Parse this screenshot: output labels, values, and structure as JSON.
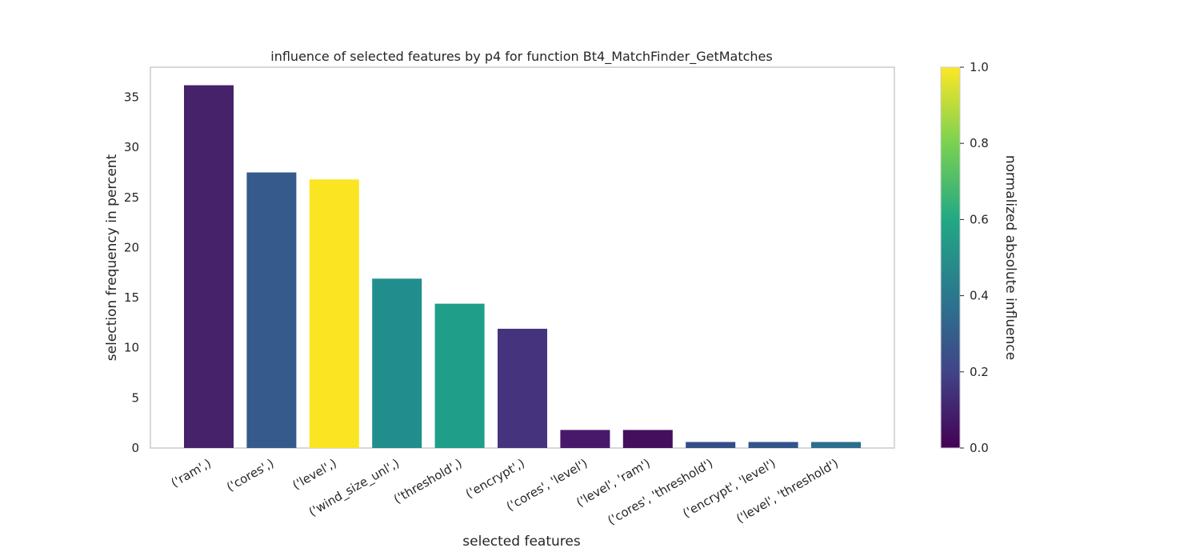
{
  "chart_data": {
    "type": "bar",
    "title": "influence of selected features by p4 for function Bt4_MatchFinder_GetMatches",
    "xlabel": "selected features",
    "ylabel": "selection frequency in percent",
    "categories": [
      "('ram',)",
      "('cores',)",
      "('level',)",
      "('wind_size_unl',)",
      "('threshold',)",
      "('encrypt',)",
      "('cores', 'level')",
      "('level', 'ram')",
      "('cores', 'threshold')",
      "('encrypt', 'level')",
      "('level', 'threshold')"
    ],
    "values": [
      36.2,
      27.5,
      26.8,
      16.9,
      14.4,
      11.9,
      1.8,
      1.8,
      0.6,
      0.6,
      0.6
    ],
    "influence": [
      0.12,
      0.33,
      1.0,
      0.5,
      0.6,
      0.18,
      0.1,
      0.04,
      0.26,
      0.28,
      0.33
    ],
    "bar_colors": [
      "#46226b",
      "#355a8b",
      "#fbe522",
      "#218e8d",
      "#1f9e89",
      "#46337e",
      "#48196b",
      "#440f5c",
      "#344d89",
      "#32548a",
      "#2d6e8e"
    ],
    "ylim": [
      0,
      38
    ],
    "yticks": [
      0,
      5,
      10,
      15,
      20,
      25,
      30,
      35
    ],
    "grid": false,
    "colorbar": {
      "label": "normalized absolute influence",
      "range": [
        0,
        1
      ],
      "ticks": [
        "0.0",
        "0.2",
        "0.4",
        "0.6",
        "0.8",
        "1.0"
      ],
      "colormap": "viridis",
      "stops": [
        "#440154",
        "#414487",
        "#2a788e",
        "#22a884",
        "#7ad151",
        "#fde725"
      ]
    }
  }
}
